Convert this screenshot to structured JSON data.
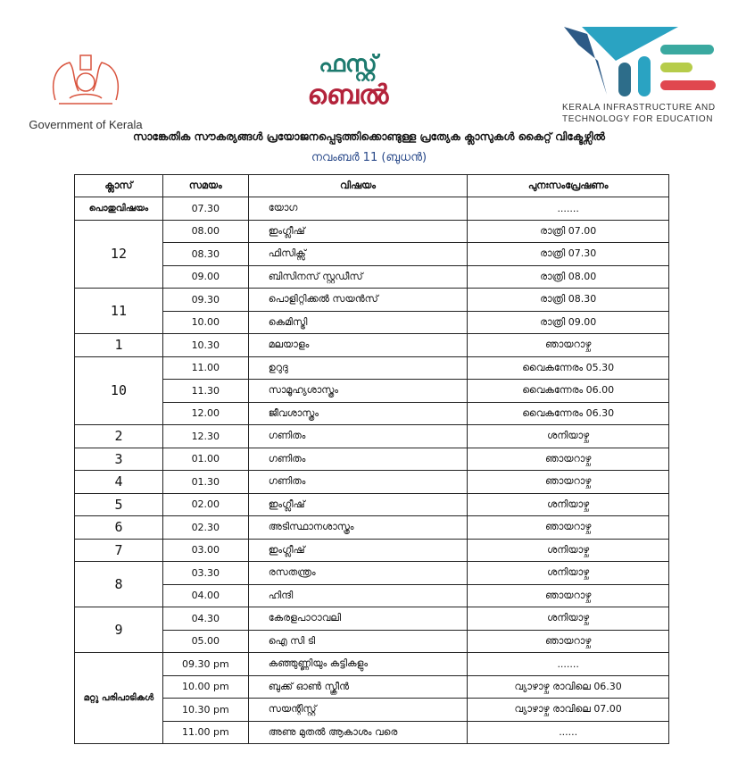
{
  "header": {
    "gov_label": "Government of Kerala",
    "center_logo_text": [
      "ഫസ്റ്റ്",
      "ബെൽ"
    ],
    "kite_label_line1": "KERALA INFRASTRUCTURE AND",
    "kite_label_line2": "TECHNOLOGY FOR EDUCATION",
    "kite_colors": [
      "#2d5a86",
      "#2aa3c2",
      "#3aa9a0",
      "#b6cc4a",
      "#e0474f"
    ],
    "title": "സാങ്കേതിക സൗകര്യങ്ങൾ പ്രയോജനപ്പെടുത്തിക്കൊണ്ടുള്ള പ്രത്യേക ക്ലാസുകൾ കൈറ്റ് വിക്ടേഴ്സിൽ",
    "date": "നവംബർ 11  (ബുധൻ)"
  },
  "table": {
    "columns": [
      "ക്ലാസ്",
      "സമയം",
      "വിഷയം",
      "പുനഃസംപ്രേഷണം"
    ],
    "groups": [
      {
        "class": "പൊതുവിഷയം",
        "rows": [
          [
            "07.30",
            "യോഗ",
            "......."
          ]
        ]
      },
      {
        "class": "12",
        "rows": [
          [
            "08.00",
            "ഇംഗ്ലീഷ്",
            "രാത്രി 07.00"
          ],
          [
            "08.30",
            "ഫിസിക്സ്",
            "രാത്രി  07.30"
          ],
          [
            "09.00",
            "ബിസിനസ് സ്റ്റഡീസ്",
            "രാത്രി  08.00"
          ]
        ]
      },
      {
        "class": "11",
        "rows": [
          [
            "09.30",
            "പൊളിറ്റിക്കൽ സയൻസ്",
            "രാത്രി  08.30"
          ],
          [
            "10.00",
            "കെമിസ്ട്രി",
            "രാത്രി  09.00"
          ]
        ]
      },
      {
        "class": "1",
        "rows": [
          [
            "10.30",
            "മലയാളം",
            "ഞായറാഴ്ച"
          ]
        ]
      },
      {
        "class": "10",
        "rows": [
          [
            "11.00",
            "ഉറുദു",
            "വൈകന്നേരം 05.30"
          ],
          [
            "11.30",
            "സാമൂഹ്യശാസ്ത്രം",
            "വൈകന്നേരം 06.00"
          ],
          [
            "12.00",
            "ജീവശാസ്ത്രം",
            "വൈകന്നേരം 06.30"
          ]
        ]
      },
      {
        "class": "2",
        "rows": [
          [
            "12.30",
            "ഗണിതം",
            "ശനിയാഴ്ച"
          ]
        ]
      },
      {
        "class": "3",
        "rows": [
          [
            "01.00",
            "ഗണിതം",
            "ഞായറാഴ്ച"
          ]
        ]
      },
      {
        "class": "4",
        "rows": [
          [
            "01.30",
            "ഗണിതം",
            "ഞായറാഴ്ച"
          ]
        ]
      },
      {
        "class": "5",
        "rows": [
          [
            "02.00",
            "ഇംഗ്ലീഷ്",
            "ശനിയാഴ്ച"
          ]
        ]
      },
      {
        "class": "6",
        "rows": [
          [
            "02.30",
            "അടിസ്ഥാനശാസ്ത്രം",
            "ഞായറാഴ്ച"
          ]
        ]
      },
      {
        "class": "7",
        "rows": [
          [
            "03.00",
            "ഇംഗ്ലീഷ്",
            "ശനിയാഴ്ച"
          ]
        ]
      },
      {
        "class": "8",
        "rows": [
          [
            "03.30",
            "രസതന്ത്രം",
            "ശനിയാഴ്ച"
          ],
          [
            "04.00",
            "ഹിന്ദി",
            "ഞായറാഴ്ച"
          ]
        ]
      },
      {
        "class": "9",
        "rows": [
          [
            "04.30",
            "കേരളപാഠാവലി",
            "ശനിയാഴ്ച"
          ],
          [
            "05.00",
            "ഐ സി ടി",
            "ഞായറാഴ്ച"
          ]
        ]
      },
      {
        "class": "മറ്റു പരിപാടികൾ",
        "rows": [
          [
            "09.30 pm",
            "കഞ്ഞുണ്ണിയും കട്ടികളും",
            "......."
          ],
          [
            "10.00 pm",
            "ബുക്ക് ഓൺ സ്ക്രീൻ",
            "വ്യാഴാഴ്ച രാവിലെ 06.30"
          ],
          [
            "10.30 pm",
            "സയന്റിസ്റ്റ്",
            "വ്യാഴാഴ്ച രാവിലെ 07.00"
          ],
          [
            "11.00 pm",
            "അണു മുതൽ ആകാശം വരെ",
            "......"
          ]
        ]
      }
    ]
  }
}
